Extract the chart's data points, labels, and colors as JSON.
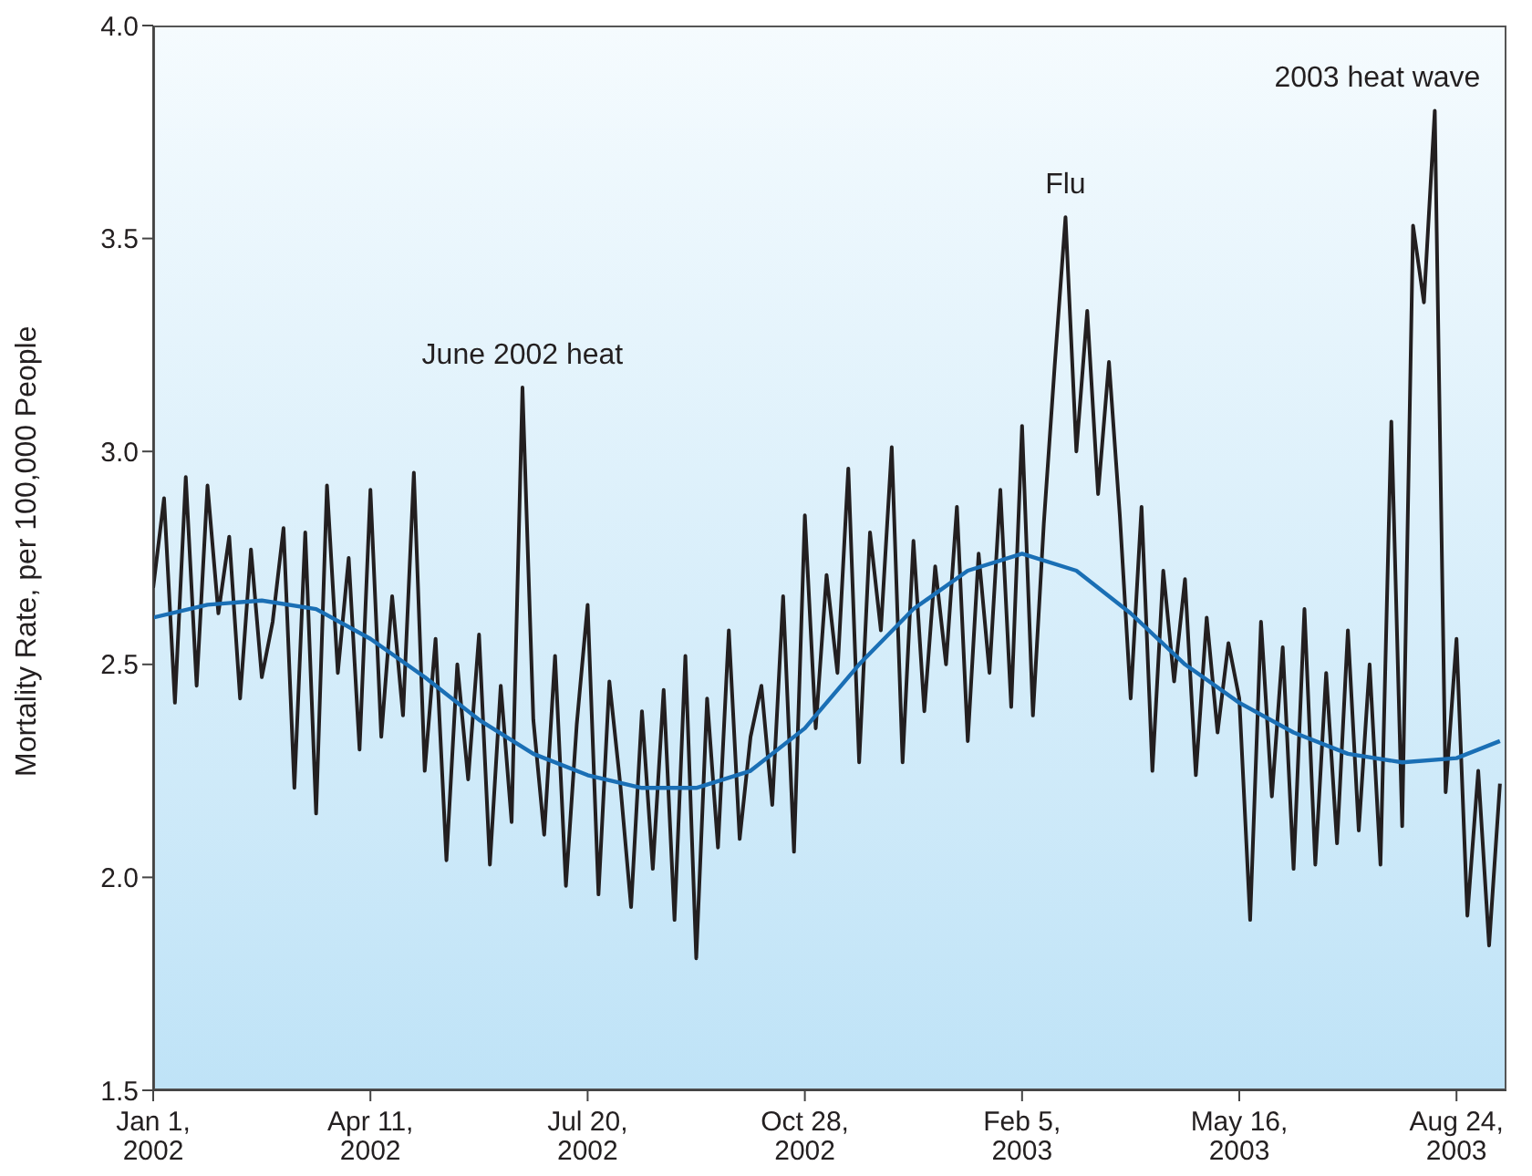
{
  "chart_data": {
    "type": "line",
    "ylabel": "Mortality Rate, per 100,000 People",
    "xlim": [
      "2002-01-01",
      "2003-09-16"
    ],
    "xticks": [
      {
        "value": "2002-01-01",
        "label": "Jan 1, 2002"
      },
      {
        "value": "2002-04-11",
        "label": "Apr 11, 2002"
      },
      {
        "value": "2002-07-20",
        "label": "Jul 20, 2002"
      },
      {
        "value": "2002-10-28",
        "label": "Oct 28, 2002"
      },
      {
        "value": "2003-02-05",
        "label": "Feb 5, 2003"
      },
      {
        "value": "2003-05-16",
        "label": "May 16, 2003"
      },
      {
        "value": "2003-08-24",
        "label": "Aug 24, 2003"
      }
    ],
    "ylim": [
      1.5,
      4.0
    ],
    "yticks": [
      {
        "value": 1.5,
        "label": "1.5"
      },
      {
        "value": 2,
        "label": "2.0"
      },
      {
        "value": 2.5,
        "label": "2.5"
      },
      {
        "value": 3,
        "label": "3.0"
      },
      {
        "value": 3.5,
        "label": "3.5"
      },
      {
        "value": 4,
        "label": "4.0"
      }
    ],
    "legend": false,
    "marker": "none",
    "line_style": "solid",
    "series": [
      {
        "color": "#231f20",
        "x": [
          "2002-01-01",
          "2002-01-06",
          "2002-01-11",
          "2002-01-16",
          "2002-01-21",
          "2002-01-26",
          "2002-01-31",
          "2002-02-05",
          "2002-02-10",
          "2002-02-15",
          "2002-02-20",
          "2002-02-25",
          "2002-03-02",
          "2002-03-07",
          "2002-03-12",
          "2002-03-17",
          "2002-03-22",
          "2002-03-27",
          "2002-04-01",
          "2002-04-06",
          "2002-04-11",
          "2002-04-16",
          "2002-04-21",
          "2002-04-26",
          "2002-05-01",
          "2002-05-06",
          "2002-05-11",
          "2002-05-16",
          "2002-05-21",
          "2002-05-26",
          "2002-05-31",
          "2002-06-05",
          "2002-06-10",
          "2002-06-15",
          "2002-06-20",
          "2002-06-25",
          "2002-06-30",
          "2002-07-05",
          "2002-07-10",
          "2002-07-15",
          "2002-07-20",
          "2002-07-25",
          "2002-07-30",
          "2002-08-04",
          "2002-08-09",
          "2002-08-14",
          "2002-08-19",
          "2002-08-24",
          "2002-08-29",
          "2002-09-03",
          "2002-09-08",
          "2002-09-13",
          "2002-09-18",
          "2002-09-23",
          "2002-09-28",
          "2002-10-03",
          "2002-10-08",
          "2002-10-13",
          "2002-10-18",
          "2002-10-23",
          "2002-10-28",
          "2002-11-02",
          "2002-11-07",
          "2002-11-12",
          "2002-11-17",
          "2002-11-22",
          "2002-11-27",
          "2002-12-02",
          "2002-12-07",
          "2002-12-12",
          "2002-12-17",
          "2002-12-22",
          "2002-12-27",
          "2003-01-01",
          "2003-01-06",
          "2003-01-11",
          "2003-01-16",
          "2003-01-21",
          "2003-01-26",
          "2003-01-31",
          "2003-02-05",
          "2003-02-10",
          "2003-02-15",
          "2003-02-20",
          "2003-02-25",
          "2003-03-02",
          "2003-03-07",
          "2003-03-12",
          "2003-03-17",
          "2003-03-22",
          "2003-03-27",
          "2003-04-01",
          "2003-04-06",
          "2003-04-11",
          "2003-04-16",
          "2003-04-21",
          "2003-04-26",
          "2003-05-01",
          "2003-05-06",
          "2003-05-11",
          "2003-05-16",
          "2003-05-21",
          "2003-05-26",
          "2003-05-31",
          "2003-06-05",
          "2003-06-10",
          "2003-06-15",
          "2003-06-20",
          "2003-06-25",
          "2003-06-30",
          "2003-07-05",
          "2003-07-10",
          "2003-07-15",
          "2003-07-20",
          "2003-07-25",
          "2003-07-30",
          "2003-08-04",
          "2003-08-09",
          "2003-08-14",
          "2003-08-19",
          "2003-08-24",
          "2003-08-29",
          "2003-09-03",
          "2003-09-08",
          "2003-09-13"
        ],
        "values": [
          2.68,
          2.89,
          2.41,
          2.94,
          2.45,
          2.92,
          2.62,
          2.8,
          2.42,
          2.77,
          2.47,
          2.6,
          2.82,
          2.21,
          2.81,
          2.15,
          2.92,
          2.48,
          2.75,
          2.3,
          2.91,
          2.33,
          2.66,
          2.38,
          2.95,
          2.25,
          2.56,
          2.04,
          2.5,
          2.23,
          2.57,
          2.03,
          2.45,
          2.13,
          3.15,
          2.37,
          2.1,
          2.52,
          1.98,
          2.36,
          2.64,
          1.96,
          2.46,
          2.22,
          1.93,
          2.39,
          2.02,
          2.44,
          1.9,
          2.52,
          1.81,
          2.42,
          2.07,
          2.58,
          2.09,
          2.33,
          2.45,
          2.17,
          2.66,
          2.06,
          2.85,
          2.35,
          2.71,
          2.48,
          2.96,
          2.27,
          2.81,
          2.58,
          3.01,
          2.27,
          2.79,
          2.39,
          2.73,
          2.5,
          2.87,
          2.32,
          2.76,
          2.48,
          2.91,
          2.4,
          3.06,
          2.38,
          2.83,
          3.2,
          3.55,
          3.0,
          3.33,
          2.9,
          3.21,
          2.85,
          2.42,
          2.87,
          2.25,
          2.72,
          2.46,
          2.7,
          2.24,
          2.61,
          2.34,
          2.55,
          2.42,
          1.9,
          2.6,
          2.19,
          2.54,
          2.02,
          2.63,
          2.03,
          2.48,
          2.08,
          2.58,
          2.11,
          2.5,
          2.03,
          3.07,
          2.12,
          3.53,
          3.35,
          3.8,
          2.2,
          2.56,
          1.91,
          2.25,
          1.84,
          2.22
        ]
      },
      {
        "color": "#1a6fb5",
        "x": [
          "2002-01-01",
          "2002-01-26",
          "2002-02-20",
          "2002-03-17",
          "2002-04-11",
          "2002-05-06",
          "2002-05-31",
          "2002-06-25",
          "2002-07-20",
          "2002-08-14",
          "2002-09-08",
          "2002-10-03",
          "2002-10-28",
          "2002-11-22",
          "2002-12-17",
          "2003-01-11",
          "2003-02-05",
          "2003-03-02",
          "2003-03-27",
          "2003-04-21",
          "2003-05-16",
          "2003-06-10",
          "2003-07-05",
          "2003-07-30",
          "2003-08-24",
          "2003-09-13"
        ],
        "values": [
          2.61,
          2.64,
          2.65,
          2.63,
          2.56,
          2.47,
          2.37,
          2.29,
          2.24,
          2.21,
          2.21,
          2.25,
          2.35,
          2.5,
          2.63,
          2.72,
          2.76,
          2.72,
          2.62,
          2.5,
          2.41,
          2.34,
          2.29,
          2.27,
          2.28,
          2.32
        ]
      }
    ],
    "annotations": [
      {
        "text": "June 2002 heat",
        "x": "2002-06-20",
        "y": 3.15
      },
      {
        "text": "Flu",
        "x": "2003-02-25",
        "y": 3.55
      },
      {
        "text": "2003 heat wave",
        "x": "2003-08-14",
        "y": 3.8
      }
    ]
  }
}
